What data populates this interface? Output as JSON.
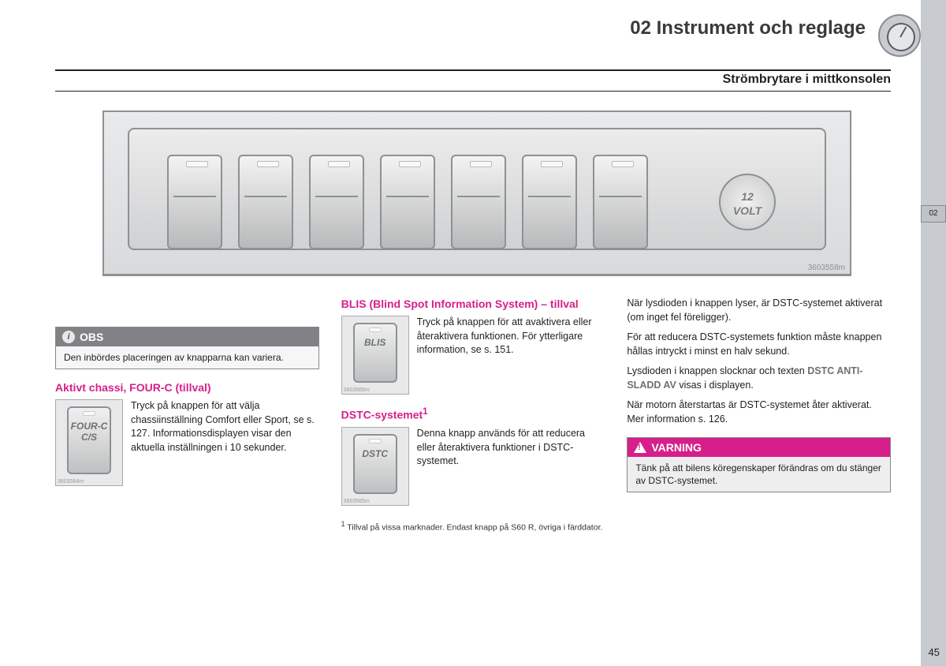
{
  "header": {
    "chapter": "02 Instrument och reglage",
    "subhead": "Strömbrytare i mittkonsolen"
  },
  "sidebar": {
    "tab": "02"
  },
  "illustration": {
    "volt_line1": "12",
    "volt_line2": "VOLT",
    "ref": "3603558m"
  },
  "note": {
    "label": "OBS",
    "body": "Den inbördes placeringen av knapparna kan variera."
  },
  "fourc": {
    "heading": "Aktivt chassi, FOUR-C (tillval)",
    "btn_label1": "FOUR-C",
    "btn_label2": "C/S",
    "thumb_ref": "3603564m",
    "text": "Tryck på knappen för att välja chassiinställning Comfort eller Sport, se s. 127. Informationsdisplayen visar den aktuella inställningen i 10 sekunder."
  },
  "blis": {
    "heading": "BLIS (Blind Spot Information System) – tillval",
    "btn_label": "BLIS",
    "thumb_ref": "3603566m",
    "text": "Tryck på knappen för att avaktivera eller återaktivera funktionen. För ytterligare information, se s. 151."
  },
  "dstc": {
    "heading_pre": "DSTC-systemet",
    "heading_sup": "1",
    "btn_label": "DSTC",
    "thumb_ref": "3603565m",
    "text": "Denna knapp används för att reducera eller återaktivera funktioner i DSTC-systemet."
  },
  "footnote": {
    "marker": "1",
    "text": "Tillval på vissa marknader. Endast knapp på S60 R, övriga i färddator."
  },
  "right": {
    "p1": "När lysdioden i knappen lyser, är DSTC-systemet aktiverat (om inget fel föreligger).",
    "p2": "För att reducera DSTC-systemets funktion måste knappen hållas intryckt i minst en halv sekund.",
    "p3a": "Lysdioden i knappen slocknar och texten ",
    "p3b": "DSTC ANTI-SLADD AV",
    "p3c": " visas i displayen.",
    "p4": "När motorn återstartas är DSTC-systemet åter aktiverat. Mer information s. 126."
  },
  "warning": {
    "label": "VARNING",
    "body": "Tänk på att bilens köregenskaper förändras om du stänger av DSTC-systemet."
  },
  "page": "45"
}
